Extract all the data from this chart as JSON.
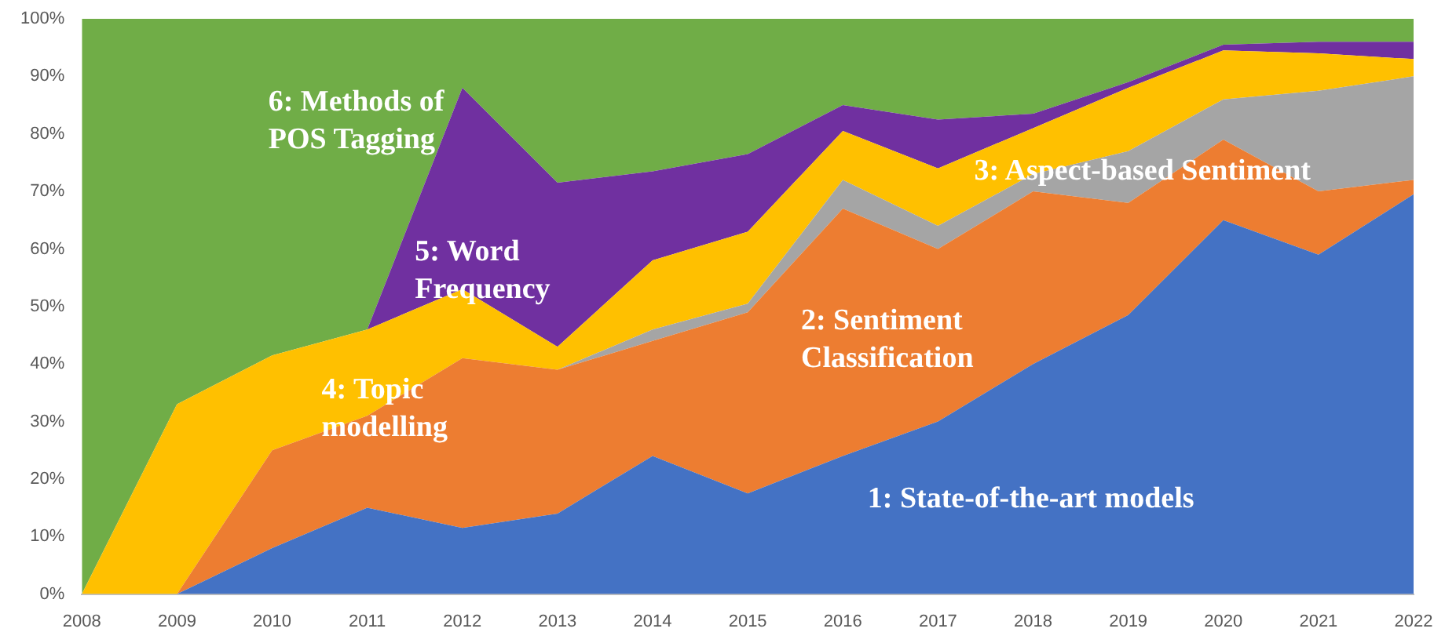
{
  "chart_data": {
    "type": "area",
    "stacked": true,
    "categories": [
      "2008",
      "2009",
      "2010",
      "2011",
      "2012",
      "2013",
      "2014",
      "2015",
      "2016",
      "2017",
      "2018",
      "2019",
      "2020",
      "2021",
      "2022"
    ],
    "series": [
      {
        "name": "1: State-of-the-art models",
        "color": "#4472c4",
        "values": [
          0,
          0,
          8,
          15,
          11.5,
          14,
          24,
          17.5,
          24,
          30,
          40,
          48.5,
          65,
          59,
          69.5
        ]
      },
      {
        "name": "2: Sentiment Classification",
        "color": "#ed7d31",
        "values": [
          0,
          0,
          17,
          16,
          29.5,
          25,
          20,
          31.5,
          43,
          30,
          30,
          19.5,
          14,
          11,
          2.5
        ]
      },
      {
        "name": "3: Aspect-based Sentiment",
        "color": "#a5a5a5",
        "values": [
          0,
          0,
          0,
          0,
          0,
          0,
          2,
          1.5,
          5,
          4,
          3,
          9,
          7,
          17.5,
          18
        ]
      },
      {
        "name": "4: Topic modelling",
        "color": "#ffc000",
        "values": [
          0,
          33,
          16.5,
          15,
          12,
          4,
          12,
          12.5,
          8.5,
          10,
          8,
          11,
          8.5,
          6.5,
          3
        ]
      },
      {
        "name": "5: Word Frequency",
        "color": "#7030a0",
        "values": [
          0,
          0,
          0,
          0,
          35,
          28.5,
          15.5,
          13.5,
          4.5,
          8.5,
          2.5,
          1,
          1,
          2,
          3
        ]
      },
      {
        "name": "6: Methods of POS Tagging",
        "color": "#70ad47",
        "values": [
          100,
          67,
          58.5,
          54,
          12,
          28.5,
          26.5,
          23.5,
          15,
          17.5,
          16.5,
          11,
          4.5,
          4,
          4
        ]
      }
    ],
    "ylim": [
      0,
      100
    ],
    "yticks": [
      {
        "value": 0,
        "label": "0%"
      },
      {
        "value": 10,
        "label": "10%"
      },
      {
        "value": 20,
        "label": "20%"
      },
      {
        "value": 30,
        "label": "30%"
      },
      {
        "value": 40,
        "label": "40%"
      },
      {
        "value": 50,
        "label": "50%"
      },
      {
        "value": 60,
        "label": "60%"
      },
      {
        "value": 70,
        "label": "70%"
      },
      {
        "value": 80,
        "label": "80%"
      },
      {
        "value": 90,
        "label": "90%"
      },
      {
        "value": 100,
        "label": "100%"
      }
    ],
    "grid": false,
    "legend": false
  }
}
